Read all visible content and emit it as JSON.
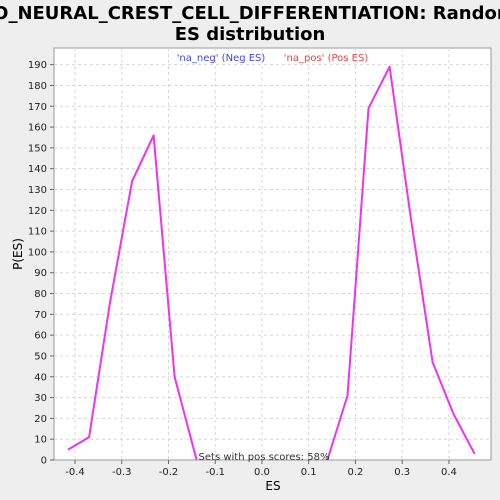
{
  "chart_data": {
    "type": "line",
    "title_line1": "GO_NEURAL_CREST_CELL_DIFFERENTIATION: Random",
    "title_line2": "ES distribution",
    "xlabel": "ES",
    "ylabel": "P(ES)",
    "xlim": [
      -0.445,
      0.49
    ],
    "ylim": [
      0,
      198
    ],
    "x_ticks": [
      -0.4,
      -0.3,
      -0.2,
      -0.1,
      0.0,
      0.1,
      0.2,
      0.3,
      0.4
    ],
    "x_tick_labels": [
      "-0.4",
      "-0.3",
      "-0.2",
      "-0.1",
      "0.0",
      "0.1",
      "0.2",
      "0.3",
      "0.4"
    ],
    "y_ticks": [
      0,
      10,
      20,
      30,
      40,
      50,
      60,
      70,
      80,
      90,
      100,
      110,
      120,
      130,
      140,
      150,
      160,
      170,
      180,
      190
    ],
    "grid": true,
    "legend_position": "top",
    "series": [
      {
        "name": "'na_neg' (Neg ES)",
        "color": "#4444ee",
        "x": [
          -0.415,
          -0.37,
          -0.325,
          -0.278,
          -0.232,
          -0.187,
          -0.14
        ],
        "y": [
          5,
          11,
          76,
          134,
          156,
          40,
          0
        ]
      },
      {
        "name": "'na_pos' (Pos ES)",
        "color": "#ee4444",
        "x": [
          0.14,
          0.183,
          0.228,
          0.273,
          0.318,
          0.365,
          0.41,
          0.455
        ],
        "y": [
          0,
          31,
          169,
          189,
          117,
          47,
          22,
          3
        ]
      }
    ],
    "line_color": "#ee33ee",
    "annotation": "Sets with pos scores: 58%"
  }
}
